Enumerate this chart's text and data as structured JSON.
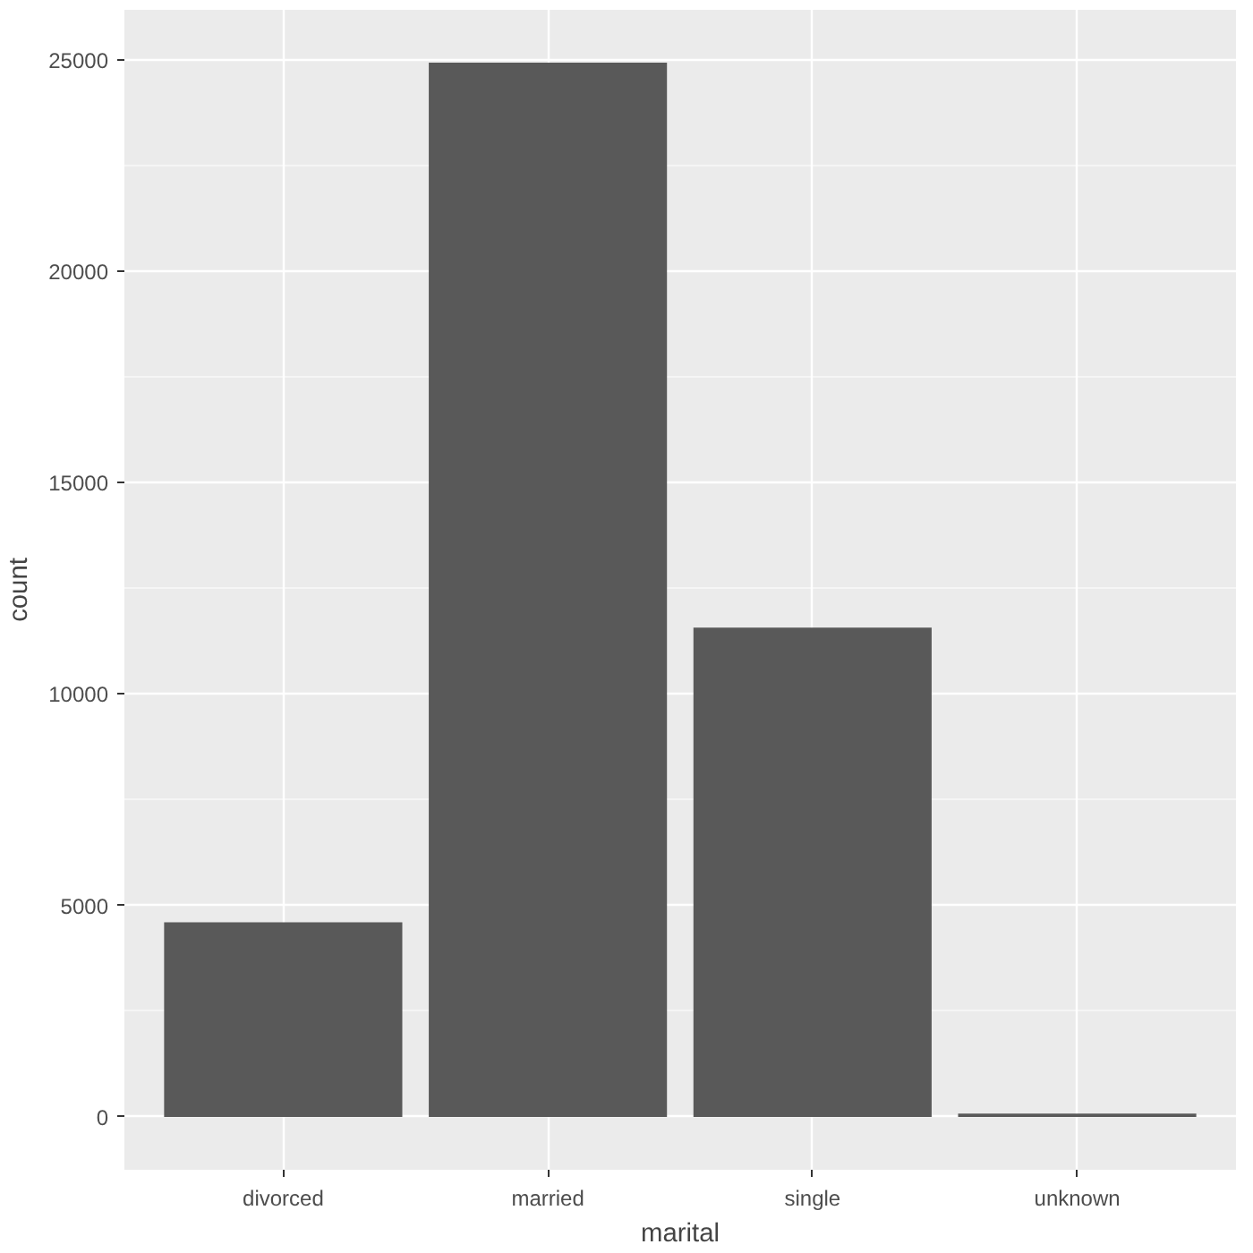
{
  "chart_data": {
    "type": "bar",
    "xlabel": "marital",
    "ylabel": "count",
    "categories": [
      "divorced",
      "married",
      "single",
      "unknown"
    ],
    "values": [
      4600,
      24930,
      11570,
      80
    ],
    "color": "#595959",
    "ylim": [
      -1250,
      26180
    ],
    "yticks": [
      0,
      5000,
      10000,
      15000,
      20000,
      25000
    ],
    "grid": true
  }
}
